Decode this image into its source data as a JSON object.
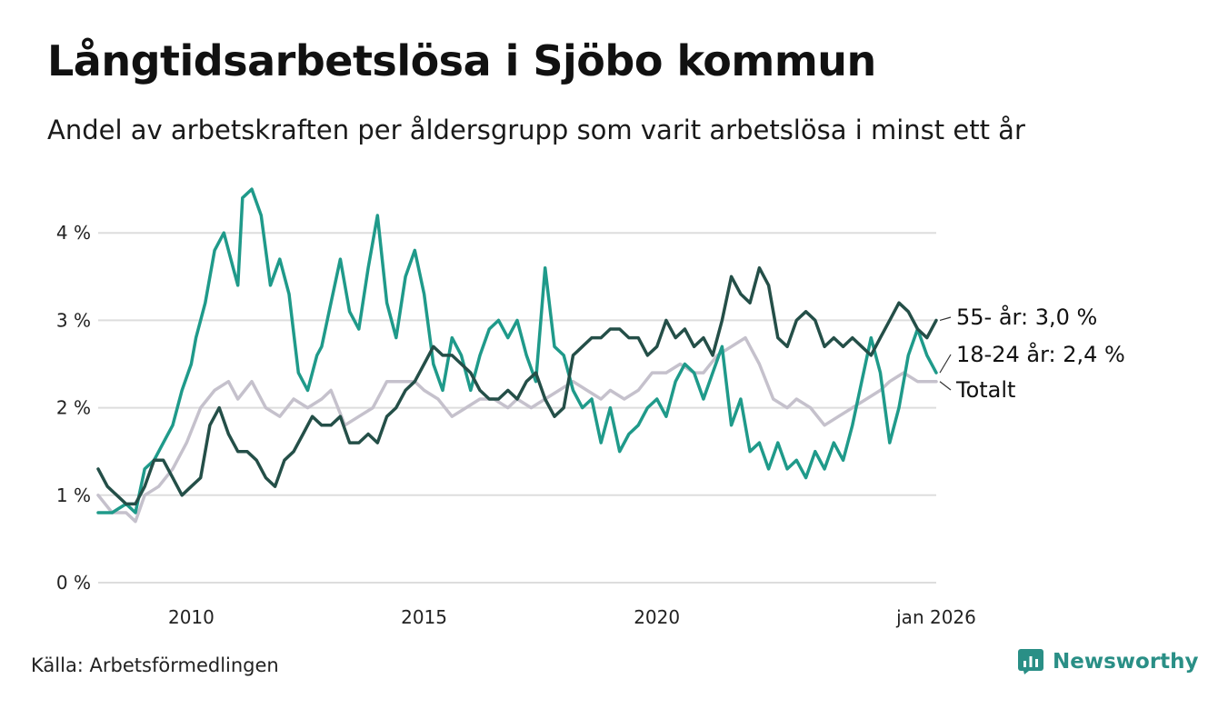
{
  "title": "Långtidsarbetslösa i Sjöbo kommun",
  "subtitle": "Andel av arbetskraften per åldersgrupp som varit arbetslösa i minst ett år",
  "source": "Källa: Arbetsförmedlingen",
  "brand": "Newsworthy",
  "colors": {
    "totalt": "#c5c1cc",
    "age18_24": "#1f9a8a",
    "age55": "#244f48",
    "grid": "#dddddd",
    "brand": "#2a8f86"
  },
  "chart_data": {
    "type": "line",
    "title": "Långtidsarbetslösa i Sjöbo kommun",
    "xlabel": "",
    "ylabel": "",
    "x_range": [
      2008.0,
      2026.0
    ],
    "ylim": [
      0,
      4.6
    ],
    "y_ticks": [
      0,
      1,
      2,
      3,
      4
    ],
    "y_tick_labels": [
      "0 %",
      "1 %",
      "2 %",
      "3 %",
      "4 %"
    ],
    "x_ticks": [
      2010,
      2015,
      2020,
      2026
    ],
    "x_tick_labels": [
      "2010",
      "2015",
      "2020",
      "jan 2026"
    ],
    "grid": true,
    "series": [
      {
        "key": "totalt",
        "name": "Totalt",
        "label": "Totalt",
        "x": [
          2008.0,
          2008.3,
          2008.6,
          2008.8,
          2009.0,
          2009.3,
          2009.6,
          2009.9,
          2010.2,
          2010.5,
          2010.8,
          2011.0,
          2011.3,
          2011.6,
          2011.9,
          2012.2,
          2012.5,
          2012.8,
          2013.0,
          2013.3,
          2013.6,
          2013.9,
          2014.2,
          2014.5,
          2014.8,
          2015.0,
          2015.3,
          2015.6,
          2015.9,
          2016.2,
          2016.5,
          2016.8,
          2017.0,
          2017.3,
          2017.6,
          2017.9,
          2018.2,
          2018.5,
          2018.8,
          2019.0,
          2019.3,
          2019.6,
          2019.9,
          2020.2,
          2020.5,
          2020.8,
          2021.0,
          2021.3,
          2021.6,
          2021.9,
          2022.2,
          2022.5,
          2022.8,
          2023.0,
          2023.3,
          2023.6,
          2023.9,
          2024.2,
          2024.5,
          2024.8,
          2025.0,
          2025.3,
          2025.6,
          2026.0
        ],
        "values": [
          1.0,
          0.8,
          0.8,
          0.7,
          1.0,
          1.1,
          1.3,
          1.6,
          2.0,
          2.2,
          2.3,
          2.1,
          2.3,
          2.0,
          1.9,
          2.1,
          2.0,
          2.1,
          2.2,
          1.8,
          1.9,
          2.0,
          2.3,
          2.3,
          2.3,
          2.2,
          2.1,
          1.9,
          2.0,
          2.1,
          2.1,
          2.0,
          2.1,
          2.0,
          2.1,
          2.2,
          2.3,
          2.2,
          2.1,
          2.2,
          2.1,
          2.2,
          2.4,
          2.4,
          2.5,
          2.4,
          2.4,
          2.6,
          2.7,
          2.8,
          2.5,
          2.1,
          2.0,
          2.1,
          2.0,
          1.8,
          1.9,
          2.0,
          2.1,
          2.2,
          2.3,
          2.4,
          2.3,
          2.3
        ]
      },
      {
        "key": "age18_24",
        "name": "18-24 år",
        "label": "18-24 år: 2,4 %",
        "x": [
          2008.0,
          2008.3,
          2008.6,
          2008.8,
          2009.0,
          2009.2,
          2009.4,
          2009.6,
          2009.8,
          2010.0,
          2010.1,
          2010.3,
          2010.5,
          2010.7,
          2010.9,
          2011.0,
          2011.1,
          2011.3,
          2011.5,
          2011.7,
          2011.9,
          2012.1,
          2012.3,
          2012.5,
          2012.7,
          2012.8,
          2013.0,
          2013.2,
          2013.4,
          2013.6,
          2013.8,
          2014.0,
          2014.2,
          2014.4,
          2014.6,
          2014.8,
          2015.0,
          2015.2,
          2015.4,
          2015.6,
          2015.8,
          2016.0,
          2016.2,
          2016.4,
          2016.6,
          2016.8,
          2017.0,
          2017.2,
          2017.4,
          2017.6,
          2017.8,
          2018.0,
          2018.2,
          2018.4,
          2018.6,
          2018.8,
          2019.0,
          2019.2,
          2019.4,
          2019.6,
          2019.8,
          2020.0,
          2020.2,
          2020.4,
          2020.6,
          2020.8,
          2021.0,
          2021.2,
          2021.4,
          2021.6,
          2021.8,
          2022.0,
          2022.2,
          2022.4,
          2022.6,
          2022.8,
          2023.0,
          2023.2,
          2023.4,
          2023.6,
          2023.8,
          2024.0,
          2024.2,
          2024.4,
          2024.6,
          2024.8,
          2025.0,
          2025.2,
          2025.4,
          2025.6,
          2025.8,
          2026.0
        ],
        "values": [
          0.8,
          0.8,
          0.9,
          0.8,
          1.3,
          1.4,
          1.6,
          1.8,
          2.2,
          2.5,
          2.8,
          3.2,
          3.8,
          4.0,
          3.6,
          3.4,
          4.4,
          4.5,
          4.2,
          3.4,
          3.7,
          3.3,
          2.4,
          2.2,
          2.6,
          2.7,
          3.2,
          3.7,
          3.1,
          2.9,
          3.6,
          4.2,
          3.2,
          2.8,
          3.5,
          3.8,
          3.3,
          2.5,
          2.2,
          2.8,
          2.6,
          2.2,
          2.6,
          2.9,
          3.0,
          2.8,
          3.0,
          2.6,
          2.3,
          3.6,
          2.7,
          2.6,
          2.2,
          2.0,
          2.1,
          1.6,
          2.0,
          1.5,
          1.7,
          1.8,
          2.0,
          2.1,
          1.9,
          2.3,
          2.5,
          2.4,
          2.1,
          2.4,
          2.7,
          1.8,
          2.1,
          1.5,
          1.6,
          1.3,
          1.6,
          1.3,
          1.4,
          1.2,
          1.5,
          1.3,
          1.6,
          1.4,
          1.8,
          2.3,
          2.8,
          2.4,
          1.6,
          2.0,
          2.6,
          2.9,
          2.6,
          2.4
        ]
      },
      {
        "key": "age55",
        "name": "55- år",
        "label": "55- år: 3,0 %",
        "x": [
          2008.0,
          2008.2,
          2008.4,
          2008.6,
          2008.8,
          2009.0,
          2009.2,
          2009.4,
          2009.6,
          2009.8,
          2010.0,
          2010.2,
          2010.4,
          2010.6,
          2010.8,
          2011.0,
          2011.2,
          2011.4,
          2011.6,
          2011.8,
          2012.0,
          2012.2,
          2012.4,
          2012.6,
          2012.8,
          2013.0,
          2013.2,
          2013.4,
          2013.6,
          2013.8,
          2014.0,
          2014.2,
          2014.4,
          2014.6,
          2014.8,
          2015.0,
          2015.2,
          2015.4,
          2015.6,
          2015.8,
          2016.0,
          2016.2,
          2016.4,
          2016.6,
          2016.8,
          2017.0,
          2017.2,
          2017.4,
          2017.6,
          2017.8,
          2018.0,
          2018.2,
          2018.4,
          2018.6,
          2018.8,
          2019.0,
          2019.2,
          2019.4,
          2019.6,
          2019.8,
          2020.0,
          2020.2,
          2020.4,
          2020.6,
          2020.8,
          2021.0,
          2021.2,
          2021.4,
          2021.6,
          2021.8,
          2022.0,
          2022.2,
          2022.4,
          2022.6,
          2022.8,
          2023.0,
          2023.2,
          2023.4,
          2023.6,
          2023.8,
          2024.0,
          2024.2,
          2024.4,
          2024.6,
          2024.8,
          2025.0,
          2025.2,
          2025.4,
          2025.6,
          2025.8,
          2026.0
        ],
        "values": [
          1.3,
          1.1,
          1.0,
          0.9,
          0.9,
          1.1,
          1.4,
          1.4,
          1.2,
          1.0,
          1.1,
          1.2,
          1.8,
          2.0,
          1.7,
          1.5,
          1.5,
          1.4,
          1.2,
          1.1,
          1.4,
          1.5,
          1.7,
          1.9,
          1.8,
          1.8,
          1.9,
          1.6,
          1.6,
          1.7,
          1.6,
          1.9,
          2.0,
          2.2,
          2.3,
          2.5,
          2.7,
          2.6,
          2.6,
          2.5,
          2.4,
          2.2,
          2.1,
          2.1,
          2.2,
          2.1,
          2.3,
          2.4,
          2.1,
          1.9,
          2.0,
          2.6,
          2.7,
          2.8,
          2.8,
          2.9,
          2.9,
          2.8,
          2.8,
          2.6,
          2.7,
          3.0,
          2.8,
          2.9,
          2.7,
          2.8,
          2.6,
          3.0,
          3.5,
          3.3,
          3.2,
          3.6,
          3.4,
          2.8,
          2.7,
          3.0,
          3.1,
          3.0,
          2.7,
          2.8,
          2.7,
          2.8,
          2.7,
          2.6,
          2.8,
          3.0,
          3.2,
          3.1,
          2.9,
          2.8,
          3.0
        ]
      }
    ]
  }
}
